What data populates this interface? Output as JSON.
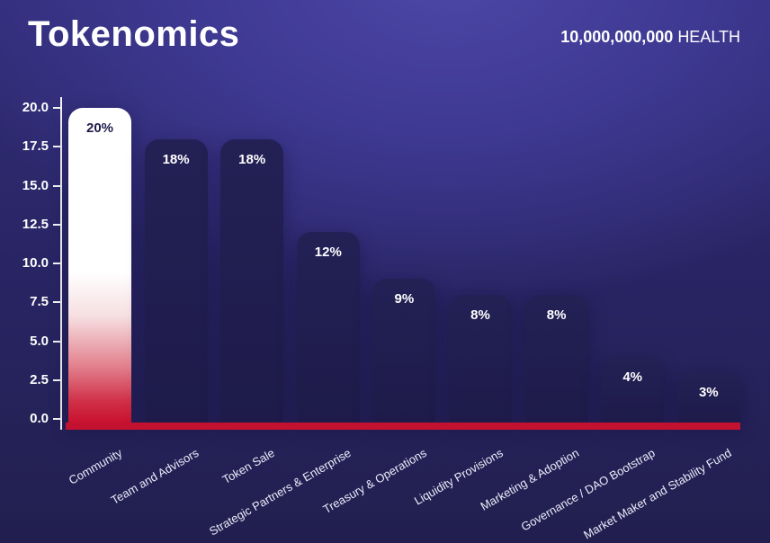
{
  "header": {
    "title": "Tokenomics",
    "supply_value": "10,000,000,000",
    "supply_unit": "HEALTH"
  },
  "chart_data": {
    "type": "bar",
    "title": "Tokenomics",
    "categories": [
      "Community",
      "Team and Advisors",
      "Token Sale",
      "Strategic Partners & Enterprise",
      "Treasury & Operations",
      "Liquidity Provisions",
      "Marketing & Adoption",
      "Governance / DAO Bootstrap",
      "Market Maker and Stability Fund"
    ],
    "values": [
      20,
      18,
      18,
      12,
      9,
      8,
      8,
      4,
      3
    ],
    "value_labels": [
      "20%",
      "18%",
      "18%",
      "12%",
      "9%",
      "8%",
      "8%",
      "4%",
      "3%"
    ],
    "xlabel": "",
    "ylabel": "",
    "ylim": [
      0,
      20
    ],
    "yticks": [
      0,
      2.5,
      5,
      7.5,
      10,
      12.5,
      15,
      17.5,
      20
    ],
    "ytick_labels": [
      "0.0",
      "2.5",
      "5.0",
      "7.5",
      "10.0",
      "12.5",
      "15.0",
      "17.5",
      "20.0"
    ],
    "grid": false,
    "legend": "none",
    "highlight_index": 0,
    "colors": {
      "bar": "#1e1b4a",
      "highlight_bar_top": "#ffffff",
      "highlight_bar_bottom": "#c8102e",
      "baseline": "#c31230",
      "background_dark": "#221f4f",
      "background_light": "#4d47a6",
      "text": "#ffffff",
      "highlight_value_label": "#1e1b4a"
    }
  }
}
